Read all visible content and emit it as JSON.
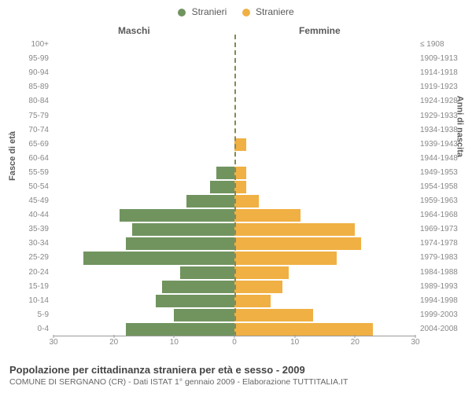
{
  "legend": {
    "male": {
      "label": "Stranieri",
      "color": "#71945f"
    },
    "female": {
      "label": "Straniere",
      "color": "#f0b043"
    }
  },
  "headers": {
    "left": "Maschi",
    "right": "Femmine"
  },
  "axis_titles": {
    "left": "Fasce di età",
    "right": "Anni di nascita"
  },
  "chart": {
    "type": "population-pyramid",
    "x_max": 30,
    "x_ticks": [
      0,
      10,
      20,
      30
    ],
    "male_color": "#71945f",
    "female_color": "#f0b043",
    "zero_line_color": "#888858",
    "grid_color": "#999999",
    "background_color": "#ffffff",
    "label_color": "#888888",
    "label_fontsize": 10,
    "header_fontsize": 12,
    "rows": [
      {
        "age": "100+",
        "birth": "≤ 1908",
        "m": 0,
        "f": 0
      },
      {
        "age": "95-99",
        "birth": "1909-1913",
        "m": 0,
        "f": 0
      },
      {
        "age": "90-94",
        "birth": "1914-1918",
        "m": 0,
        "f": 0
      },
      {
        "age": "85-89",
        "birth": "1919-1923",
        "m": 0,
        "f": 0
      },
      {
        "age": "80-84",
        "birth": "1924-1928",
        "m": 0,
        "f": 0
      },
      {
        "age": "75-79",
        "birth": "1929-1933",
        "m": 0,
        "f": 0
      },
      {
        "age": "70-74",
        "birth": "1934-1938",
        "m": 0,
        "f": 0
      },
      {
        "age": "65-69",
        "birth": "1939-1943",
        "m": 0,
        "f": 2
      },
      {
        "age": "60-64",
        "birth": "1944-1948",
        "m": 0,
        "f": 0
      },
      {
        "age": "55-59",
        "birth": "1949-1953",
        "m": 3,
        "f": 2
      },
      {
        "age": "50-54",
        "birth": "1954-1958",
        "m": 4,
        "f": 2
      },
      {
        "age": "45-49",
        "birth": "1959-1963",
        "m": 8,
        "f": 4
      },
      {
        "age": "40-44",
        "birth": "1964-1968",
        "m": 19,
        "f": 11
      },
      {
        "age": "35-39",
        "birth": "1969-1973",
        "m": 17,
        "f": 20
      },
      {
        "age": "30-34",
        "birth": "1974-1978",
        "m": 18,
        "f": 21
      },
      {
        "age": "25-29",
        "birth": "1979-1983",
        "m": 25,
        "f": 17
      },
      {
        "age": "20-24",
        "birth": "1984-1988",
        "m": 9,
        "f": 9
      },
      {
        "age": "15-19",
        "birth": "1989-1993",
        "m": 12,
        "f": 8
      },
      {
        "age": "10-14",
        "birth": "1994-1998",
        "m": 13,
        "f": 6
      },
      {
        "age": "5-9",
        "birth": "1999-2003",
        "m": 10,
        "f": 13
      },
      {
        "age": "0-4",
        "birth": "2004-2008",
        "m": 18,
        "f": 23
      }
    ]
  },
  "footer": {
    "title": "Popolazione per cittadinanza straniera per età e sesso - 2009",
    "subtitle": "COMUNE DI SERGNANO (CR) - Dati ISTAT 1° gennaio 2009 - Elaborazione TUTTITALIA.IT"
  }
}
